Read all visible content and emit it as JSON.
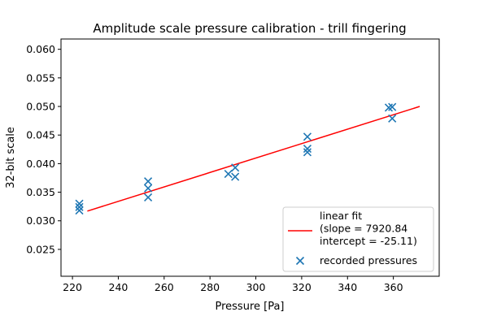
{
  "chart_data": {
    "type": "scatter",
    "title": "Amplitude scale pressure calibration - trill fingering",
    "xlabel": "Pressure [Pa]",
    "ylabel": "32-bit scale",
    "xlim": [
      215,
      380
    ],
    "ylim": [
      0.0203,
      0.0618
    ],
    "x_ticks": [
      220,
      240,
      260,
      280,
      300,
      320,
      340,
      360
    ],
    "y_ticks": [
      0.025,
      0.03,
      0.035,
      0.04,
      0.045,
      0.05,
      0.055,
      0.06
    ],
    "x_tick_labels": [
      "220",
      "240",
      "260",
      "280",
      "300",
      "320",
      "340",
      "360"
    ],
    "y_tick_labels": [
      "0.025",
      "0.030",
      "0.035",
      "0.040",
      "0.045",
      "0.050",
      "0.055",
      "0.060"
    ],
    "grid": false,
    "legend_position": "lower-right",
    "series": [
      {
        "name": "linear fit\n(slope = 7920.84\nintercept = -25.11)",
        "type": "line",
        "color": "#ff0000",
        "x": [
          226.5,
          371.5
        ],
        "y": [
          0.0317,
          0.05
        ]
      },
      {
        "name": "recorded pressures",
        "type": "scatter",
        "marker": "x",
        "color": "#1f77b4",
        "x": [
          223,
          223,
          223,
          253,
          253,
          253,
          288,
          291,
          291,
          322.5,
          322.5,
          322.5,
          358,
          359.5,
          359.5
        ],
        "y": [
          0.033,
          0.0324,
          0.0318,
          0.0369,
          0.0357,
          0.0341,
          0.0382,
          0.0393,
          0.0377,
          0.0447,
          0.0426,
          0.042,
          0.0498,
          0.0499,
          0.0479
        ]
      }
    ]
  }
}
